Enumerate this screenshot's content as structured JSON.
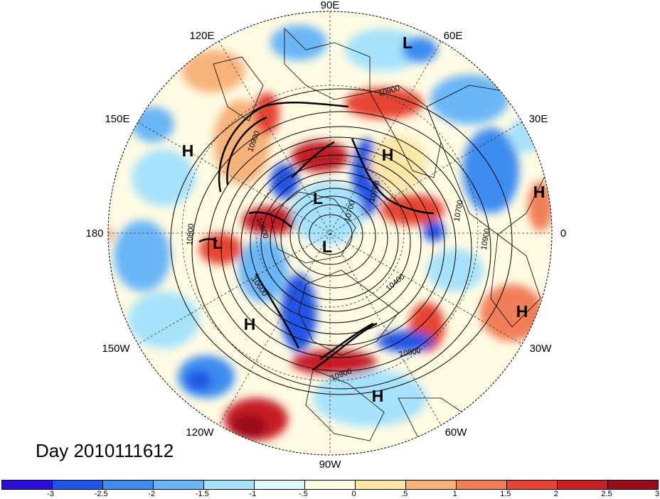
{
  "title": "Day 2010111612",
  "longitude_labels": {
    "lon_90e": "90E",
    "lon_60e": "60E",
    "lon_30e": "30E",
    "lon_0": "0",
    "lon_30w": "30W",
    "lon_60w": "60W",
    "lon_90w": "90W",
    "lon_120w": "120W",
    "lon_150w": "150W",
    "lon_180": "180",
    "lon_150e": "150E",
    "lon_120e": "120E"
  },
  "pressure_centers": [
    {
      "type": "L"
    },
    {
      "type": "H"
    },
    {
      "type": "H"
    },
    {
      "type": "L"
    },
    {
      "type": "L"
    },
    {
      "type": "H"
    },
    {
      "type": "L"
    },
    {
      "type": "H"
    },
    {
      "type": "H"
    },
    {
      "type": "H"
    }
  ],
  "contour_labels": [
    "10900",
    "10900",
    "10700",
    "10900",
    "10800",
    "10400",
    "10600",
    "10600",
    "10800",
    "10900",
    "10700",
    "10700"
  ],
  "colorbar": {
    "colors": [
      "#2b0fd6",
      "#2154e6",
      "#3d8cf0",
      "#6bb6f6",
      "#a6e2fb",
      "#dff8fd",
      "#fffbe3",
      "#fde7a7",
      "#f7b27a",
      "#f07e58",
      "#e54533",
      "#c71f27",
      "#9a0b1e"
    ],
    "labels": [
      "-3",
      "-2.5",
      "-2",
      "-1.5",
      "-1",
      "-.5",
      "0",
      ".5",
      "1",
      "1.5",
      "2",
      "2.5",
      "3"
    ]
  },
  "map_colors": {
    "ocean_neutral": "#fffbe3",
    "land_line": "#000000",
    "grid_line": "#333333"
  }
}
